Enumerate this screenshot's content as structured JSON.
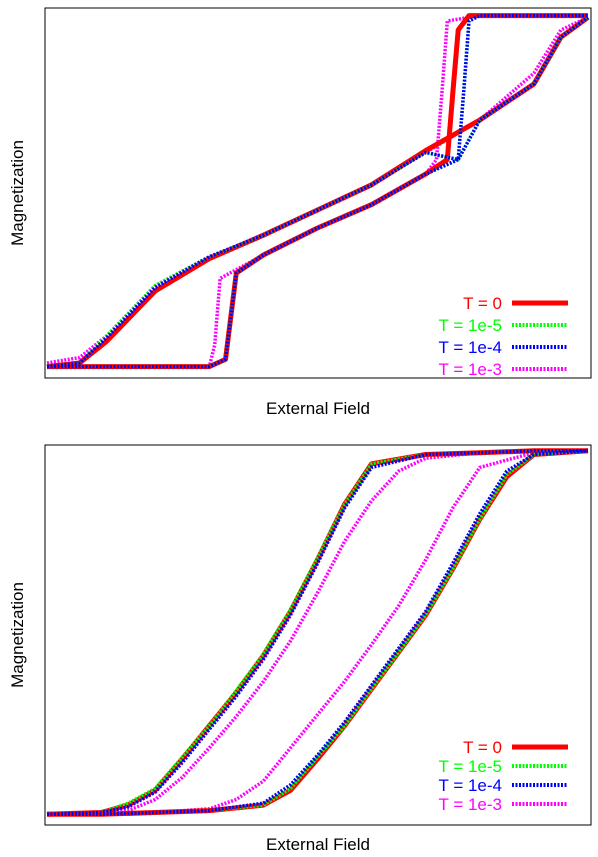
{
  "chart_data": [
    {
      "type": "line",
      "xlabel": "External Field",
      "ylabel": "Magnetization",
      "xlim": [
        0,
        1
      ],
      "ylim": [
        -1,
        1
      ],
      "grid": false,
      "legend_position": "bottom-right",
      "series": [
        {
          "name": "T = 0",
          "color": "#ff0000",
          "dash": "solid",
          "lower_x": [
            0,
            0.06,
            0.11,
            0.2,
            0.3,
            0.4,
            0.5,
            0.6,
            0.7,
            0.8,
            0.9,
            0.95,
            1
          ],
          "lower_y": [
            -0.97,
            -0.95,
            -0.83,
            -0.55,
            -0.37,
            -0.24,
            -0.1,
            0.04,
            0.23,
            0.4,
            0.6,
            0.86,
            0.97
          ],
          "upper_x": [
            0,
            0.1,
            0.2,
            0.3,
            0.33,
            0.35,
            0.4,
            0.5,
            0.6,
            0.7,
            0.74,
            0.75,
            0.76,
            0.78,
            0.8,
            0.9,
            1
          ],
          "upper_y": [
            -0.97,
            -0.97,
            -0.97,
            -0.97,
            -0.93,
            -0.45,
            -0.35,
            -0.2,
            -0.07,
            0.1,
            0.18,
            0.55,
            0.9,
            0.98,
            0.98,
            0.98,
            0.98
          ]
        },
        {
          "name": "T = 1e-5",
          "color": "#00ff00",
          "dash": "dotted",
          "lower_x": [
            0,
            0.06,
            0.11,
            0.2,
            0.3,
            0.4,
            0.5,
            0.6,
            0.7,
            0.76,
            0.8,
            0.9,
            0.95,
            1
          ],
          "lower_y": [
            -0.97,
            -0.95,
            -0.8,
            -0.52,
            -0.36,
            -0.24,
            -0.1,
            0.04,
            0.22,
            0.18,
            0.4,
            0.6,
            0.86,
            0.97
          ],
          "upper_x": [
            0,
            0.1,
            0.2,
            0.3,
            0.33,
            0.35,
            0.4,
            0.5,
            0.6,
            0.7,
            0.76,
            0.77,
            0.78,
            0.8,
            0.9,
            1
          ],
          "upper_y": [
            -0.97,
            -0.97,
            -0.97,
            -0.97,
            -0.93,
            -0.45,
            -0.35,
            -0.2,
            -0.07,
            0.1,
            0.18,
            0.55,
            0.95,
            0.98,
            0.98,
            0.98
          ]
        },
        {
          "name": "T = 1e-4",
          "color": "#0000ff",
          "dash": "dotted",
          "lower_x": [
            0,
            0.06,
            0.11,
            0.2,
            0.3,
            0.4,
            0.5,
            0.6,
            0.7,
            0.76,
            0.8,
            0.9,
            0.95,
            1
          ],
          "lower_y": [
            -0.97,
            -0.95,
            -0.81,
            -0.53,
            -0.36,
            -0.24,
            -0.1,
            0.04,
            0.22,
            0.18,
            0.4,
            0.6,
            0.86,
            0.97
          ],
          "upper_x": [
            0,
            0.1,
            0.2,
            0.3,
            0.33,
            0.35,
            0.4,
            0.5,
            0.6,
            0.7,
            0.76,
            0.77,
            0.78,
            0.8,
            0.9,
            1
          ],
          "upper_y": [
            -0.97,
            -0.97,
            -0.97,
            -0.97,
            -0.93,
            -0.45,
            -0.35,
            -0.2,
            -0.07,
            0.1,
            0.18,
            0.55,
            0.95,
            0.98,
            0.98,
            0.98
          ]
        },
        {
          "name": "T = 1e-3",
          "color": "#ff00ff",
          "dash": "dotted",
          "lower_x": [
            0,
            0.06,
            0.11,
            0.2,
            0.3,
            0.4,
            0.5,
            0.6,
            0.7,
            0.8,
            0.9,
            0.95,
            1
          ],
          "lower_y": [
            -0.95,
            -0.92,
            -0.8,
            -0.52,
            -0.36,
            -0.24,
            -0.1,
            0.04,
            0.22,
            0.4,
            0.66,
            0.9,
            0.97
          ],
          "upper_x": [
            0,
            0.1,
            0.2,
            0.3,
            0.31,
            0.32,
            0.4,
            0.5,
            0.6,
            0.7,
            0.72,
            0.73,
            0.74,
            0.8,
            0.9,
            1
          ],
          "upper_y": [
            -0.97,
            -0.97,
            -0.97,
            -0.97,
            -0.85,
            -0.48,
            -0.35,
            -0.2,
            -0.07,
            0.1,
            0.18,
            0.55,
            0.95,
            0.98,
            0.98,
            0.98
          ]
        }
      ]
    },
    {
      "type": "line",
      "xlabel": "External Field",
      "ylabel": "Magnetization",
      "xlim": [
        0,
        1
      ],
      "ylim": [
        -1,
        1
      ],
      "grid": false,
      "legend_position": "bottom-right",
      "series": [
        {
          "name": "T = 0",
          "color": "#ff0000",
          "dash": "solid",
          "lower_x": [
            0,
            0.1,
            0.2,
            0.3,
            0.4,
            0.45,
            0.5,
            0.55,
            0.6,
            0.65,
            0.7,
            0.75,
            0.8,
            0.85,
            0.9,
            1
          ],
          "lower_y": [
            -0.98,
            -0.98,
            -0.97,
            -0.96,
            -0.93,
            -0.85,
            -0.68,
            -0.5,
            -0.3,
            -0.1,
            0.1,
            0.35,
            0.62,
            0.85,
            0.97,
            0.99
          ],
          "upper_x": [
            0,
            0.1,
            0.15,
            0.2,
            0.25,
            0.3,
            0.35,
            0.4,
            0.45,
            0.5,
            0.55,
            0.6,
            0.7,
            0.8,
            0.9,
            1
          ],
          "upper_y": [
            -0.98,
            -0.97,
            -0.93,
            -0.85,
            -0.68,
            -0.5,
            -0.32,
            -0.12,
            0.12,
            0.4,
            0.7,
            0.92,
            0.97,
            0.98,
            0.99,
            0.99
          ]
        },
        {
          "name": "T = 1e-5",
          "color": "#00ff00",
          "dash": "dotted",
          "lower_x": [
            0,
            0.1,
            0.2,
            0.3,
            0.4,
            0.45,
            0.5,
            0.55,
            0.6,
            0.65,
            0.7,
            0.75,
            0.8,
            0.85,
            0.9,
            1
          ],
          "lower_y": [
            -0.98,
            -0.98,
            -0.97,
            -0.96,
            -0.93,
            -0.84,
            -0.67,
            -0.5,
            -0.3,
            -0.1,
            0.1,
            0.35,
            0.62,
            0.86,
            0.97,
            0.99
          ],
          "upper_x": [
            0,
            0.1,
            0.15,
            0.2,
            0.25,
            0.3,
            0.35,
            0.4,
            0.45,
            0.5,
            0.55,
            0.6,
            0.7,
            0.8,
            0.9,
            1
          ],
          "upper_y": [
            -0.98,
            -0.97,
            -0.92,
            -0.84,
            -0.67,
            -0.5,
            -0.31,
            -0.11,
            0.13,
            0.41,
            0.7,
            0.92,
            0.97,
            0.98,
            0.99,
            0.99
          ]
        },
        {
          "name": "T = 1e-4",
          "color": "#0000ff",
          "dash": "dotted",
          "lower_x": [
            0,
            0.1,
            0.2,
            0.3,
            0.4,
            0.45,
            0.5,
            0.55,
            0.6,
            0.65,
            0.7,
            0.75,
            0.8,
            0.85,
            0.9,
            1
          ],
          "lower_y": [
            -0.98,
            -0.98,
            -0.97,
            -0.96,
            -0.92,
            -0.82,
            -0.66,
            -0.48,
            -0.28,
            -0.08,
            0.12,
            0.38,
            0.65,
            0.88,
            0.97,
            0.99
          ],
          "upper_x": [
            0,
            0.1,
            0.15,
            0.2,
            0.25,
            0.3,
            0.35,
            0.4,
            0.45,
            0.5,
            0.55,
            0.6,
            0.7,
            0.8,
            0.9,
            1
          ],
          "upper_y": [
            -0.98,
            -0.97,
            -0.94,
            -0.86,
            -0.7,
            -0.52,
            -0.34,
            -0.14,
            0.1,
            0.38,
            0.68,
            0.9,
            0.97,
            0.98,
            0.99,
            0.99
          ]
        },
        {
          "name": "T = 1e-3",
          "color": "#ff00ff",
          "dash": "dotted",
          "lower_x": [
            0,
            0.1,
            0.2,
            0.3,
            0.35,
            0.4,
            0.45,
            0.5,
            0.55,
            0.6,
            0.65,
            0.7,
            0.75,
            0.8,
            0.9,
            1
          ],
          "lower_y": [
            -0.98,
            -0.98,
            -0.97,
            -0.95,
            -0.9,
            -0.8,
            -0.62,
            -0.44,
            -0.26,
            -0.06,
            0.15,
            0.4,
            0.68,
            0.9,
            0.98,
            0.99
          ],
          "upper_x": [
            0,
            0.1,
            0.15,
            0.2,
            0.25,
            0.3,
            0.35,
            0.4,
            0.45,
            0.5,
            0.55,
            0.6,
            0.65,
            0.7,
            0.8,
            0.9,
            1
          ],
          "upper_y": [
            -0.98,
            -0.97,
            -0.96,
            -0.9,
            -0.78,
            -0.62,
            -0.45,
            -0.26,
            -0.04,
            0.22,
            0.5,
            0.72,
            0.88,
            0.95,
            0.98,
            0.99,
            0.99
          ]
        }
      ]
    }
  ]
}
